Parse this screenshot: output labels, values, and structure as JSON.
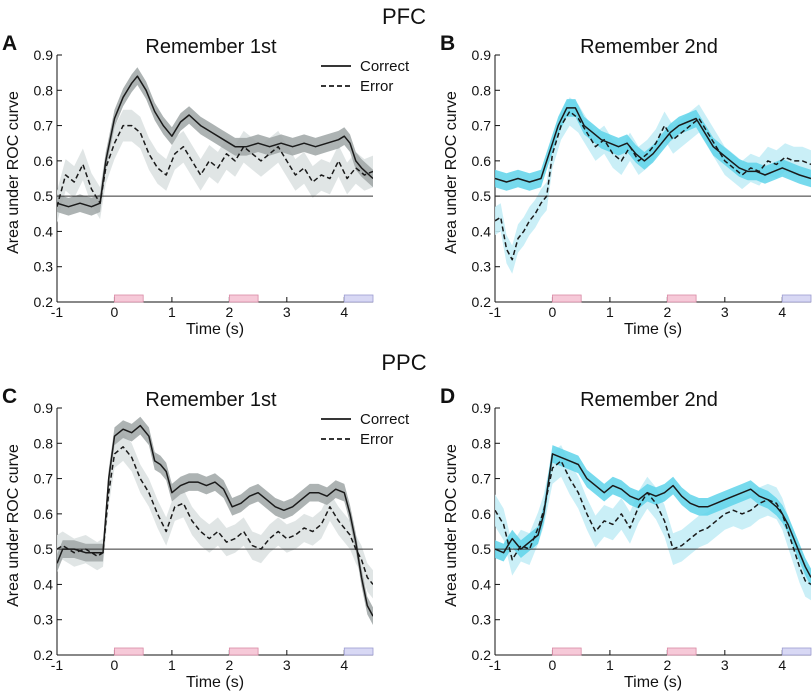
{
  "figure": {
    "sections": [
      {
        "key": "pfc",
        "title": "PFC"
      },
      {
        "key": "ppc",
        "title": "PPC"
      }
    ],
    "legend": {
      "correct": "Correct",
      "error": "Error"
    }
  },
  "colors": {
    "correct_band_gray": "#9fa6a6",
    "error_band_gray": "#dde2e2",
    "correct_band_cyan": "#5fd3ea",
    "error_band_cyan": "#c4edf6",
    "line": "#1a1a1a",
    "stim_pink": "#f6c9d8",
    "stim_pink_edge": "#d98aa5",
    "stim_lavender": "#d8d8f4",
    "stim_lavender_edge": "#9c9cd0"
  },
  "chart_data": [
    {
      "id": "A",
      "type": "line",
      "section": "PFC",
      "letter": "A",
      "title": "Remember 1st",
      "xlabel": "Time (s)",
      "ylabel": "Area under ROC curve",
      "xlim": [
        -1,
        4.5
      ],
      "ylim": [
        0.2,
        0.9
      ],
      "xticks": [
        "-1",
        "0",
        "1",
        "2",
        "3",
        "4"
      ],
      "yticks": [
        "0.2",
        "0.3",
        "0.4",
        "0.5",
        "0.6",
        "0.7",
        "0.8",
        "0.9"
      ],
      "reference_line": 0.5,
      "band_style": "gray",
      "show_legend": true,
      "stimuli": [
        [
          0,
          0.5,
          "pink"
        ],
        [
          2,
          2.5,
          "pink"
        ],
        [
          4,
          4.5,
          "lavender"
        ]
      ],
      "series": [
        {
          "name": "Correct",
          "style": "solid",
          "band": 0.025,
          "x": [
            -1,
            -0.8,
            -0.6,
            -0.4,
            -0.25,
            -0.15,
            0,
            0.15,
            0.3,
            0.4,
            0.55,
            0.7,
            0.85,
            1.0,
            1.15,
            1.3,
            1.5,
            1.7,
            1.9,
            2.1,
            2.3,
            2.5,
            2.7,
            2.9,
            3.1,
            3.3,
            3.5,
            3.7,
            3.9,
            4.0,
            4.1,
            4.2,
            4.3,
            4.5
          ],
          "y": [
            0.48,
            0.47,
            0.48,
            0.47,
            0.48,
            0.6,
            0.72,
            0.78,
            0.82,
            0.84,
            0.8,
            0.74,
            0.7,
            0.67,
            0.71,
            0.73,
            0.7,
            0.68,
            0.66,
            0.64,
            0.64,
            0.65,
            0.64,
            0.65,
            0.64,
            0.65,
            0.64,
            0.65,
            0.66,
            0.67,
            0.65,
            0.6,
            0.58,
            0.55
          ]
        },
        {
          "name": "Error",
          "style": "dashed",
          "band": 0.045,
          "x": [
            -1,
            -0.85,
            -0.7,
            -0.55,
            -0.4,
            -0.25,
            -0.15,
            0,
            0.15,
            0.3,
            0.45,
            0.6,
            0.75,
            0.9,
            1.05,
            1.2,
            1.35,
            1.5,
            1.65,
            1.8,
            1.95,
            2.1,
            2.25,
            2.4,
            2.55,
            2.7,
            2.85,
            3.0,
            3.15,
            3.3,
            3.45,
            3.6,
            3.75,
            3.9,
            4.05,
            4.2,
            4.35,
            4.5
          ],
          "y": [
            0.47,
            0.56,
            0.54,
            0.59,
            0.52,
            0.48,
            0.58,
            0.65,
            0.7,
            0.7,
            0.68,
            0.62,
            0.58,
            0.56,
            0.62,
            0.64,
            0.6,
            0.56,
            0.6,
            0.58,
            0.62,
            0.6,
            0.64,
            0.62,
            0.6,
            0.62,
            0.64,
            0.6,
            0.56,
            0.58,
            0.54,
            0.56,
            0.55,
            0.6,
            0.55,
            0.58,
            0.56,
            0.57
          ]
        }
      ]
    },
    {
      "id": "B",
      "type": "line",
      "section": "PFC",
      "letter": "B",
      "title": "Remember 2nd",
      "xlabel": "Time (s)",
      "ylabel": "Area under ROC curve",
      "xlim": [
        -1,
        4.5
      ],
      "ylim": [
        0.2,
        0.9
      ],
      "xticks": [
        "-1",
        "0",
        "1",
        "2",
        "3",
        "4"
      ],
      "yticks": [
        "0.2",
        "0.3",
        "0.4",
        "0.5",
        "0.6",
        "0.7",
        "0.8",
        "0.9"
      ],
      "reference_line": 0.5,
      "band_style": "cyan",
      "show_legend": false,
      "stimuli": [
        [
          0,
          0.5,
          "pink"
        ],
        [
          2,
          2.5,
          "pink"
        ],
        [
          4,
          4.5,
          "lavender"
        ]
      ],
      "series": [
        {
          "name": "Correct",
          "style": "solid",
          "band": 0.025,
          "x": [
            -1,
            -0.8,
            -0.6,
            -0.4,
            -0.2,
            -0.1,
            0,
            0.1,
            0.25,
            0.4,
            0.55,
            0.7,
            0.85,
            1.0,
            1.15,
            1.3,
            1.45,
            1.6,
            1.75,
            1.9,
            2.05,
            2.2,
            2.35,
            2.5,
            2.65,
            2.8,
            2.95,
            3.1,
            3.25,
            3.4,
            3.55,
            3.7,
            3.85,
            4.0,
            4.15,
            4.3,
            4.5
          ],
          "y": [
            0.55,
            0.54,
            0.55,
            0.54,
            0.55,
            0.6,
            0.65,
            0.7,
            0.75,
            0.75,
            0.7,
            0.68,
            0.66,
            0.65,
            0.64,
            0.65,
            0.62,
            0.6,
            0.62,
            0.65,
            0.68,
            0.7,
            0.71,
            0.72,
            0.68,
            0.64,
            0.62,
            0.6,
            0.58,
            0.57,
            0.57,
            0.56,
            0.57,
            0.58,
            0.57,
            0.56,
            0.55
          ]
        },
        {
          "name": "Error",
          "style": "dashed",
          "band": 0.04,
          "x": [
            -1,
            -0.9,
            -0.8,
            -0.7,
            -0.6,
            -0.5,
            -0.4,
            -0.3,
            -0.2,
            -0.1,
            0,
            0.15,
            0.3,
            0.45,
            0.6,
            0.75,
            0.9,
            1.05,
            1.2,
            1.35,
            1.5,
            1.65,
            1.8,
            1.95,
            2.1,
            2.25,
            2.4,
            2.55,
            2.7,
            2.85,
            3.0,
            3.15,
            3.3,
            3.45,
            3.6,
            3.75,
            3.9,
            4.05,
            4.2,
            4.35,
            4.5
          ],
          "y": [
            0.43,
            0.44,
            0.35,
            0.32,
            0.38,
            0.4,
            0.43,
            0.45,
            0.48,
            0.5,
            0.62,
            0.7,
            0.74,
            0.72,
            0.68,
            0.64,
            0.66,
            0.62,
            0.6,
            0.64,
            0.6,
            0.62,
            0.65,
            0.7,
            0.66,
            0.68,
            0.7,
            0.72,
            0.68,
            0.64,
            0.6,
            0.58,
            0.56,
            0.58,
            0.57,
            0.6,
            0.59,
            0.61,
            0.6,
            0.6,
            0.59
          ]
        }
      ]
    },
    {
      "id": "C",
      "type": "line",
      "section": "PPC",
      "letter": "C",
      "title": "Remember 1st",
      "xlabel": "Time (s)",
      "ylabel": "Area under ROC curve",
      "xlim": [
        -1,
        4.5
      ],
      "ylim": [
        0.2,
        0.9
      ],
      "xticks": [
        "-1",
        "0",
        "1",
        "2",
        "3",
        "4"
      ],
      "yticks": [
        "0.2",
        "0.3",
        "0.4",
        "0.5",
        "0.6",
        "0.7",
        "0.8",
        "0.9"
      ],
      "reference_line": 0.5,
      "band_style": "gray",
      "show_legend": true,
      "stimuli": [
        [
          0,
          0.5,
          "pink"
        ],
        [
          2,
          2.5,
          "pink"
        ],
        [
          4,
          4.5,
          "lavender"
        ]
      ],
      "series": [
        {
          "name": "Correct",
          "style": "solid",
          "band": 0.025,
          "x": [
            -1,
            -0.9,
            -0.7,
            -0.5,
            -0.3,
            -0.2,
            -0.1,
            0,
            0.15,
            0.3,
            0.45,
            0.6,
            0.7,
            0.8,
            0.9,
            1.0,
            1.15,
            1.3,
            1.45,
            1.6,
            1.75,
            1.9,
            2.05,
            2.2,
            2.35,
            2.5,
            2.65,
            2.8,
            2.95,
            3.1,
            3.25,
            3.4,
            3.55,
            3.7,
            3.85,
            4.0,
            4.1,
            4.2,
            4.3,
            4.4,
            4.5
          ],
          "y": [
            0.46,
            0.5,
            0.5,
            0.49,
            0.49,
            0.49,
            0.7,
            0.82,
            0.84,
            0.83,
            0.85,
            0.82,
            0.75,
            0.74,
            0.72,
            0.66,
            0.68,
            0.69,
            0.69,
            0.68,
            0.69,
            0.67,
            0.62,
            0.63,
            0.65,
            0.66,
            0.64,
            0.62,
            0.61,
            0.62,
            0.64,
            0.66,
            0.66,
            0.65,
            0.67,
            0.66,
            0.6,
            0.52,
            0.42,
            0.34,
            0.31
          ]
        },
        {
          "name": "Error",
          "style": "dashed",
          "band": 0.04,
          "x": [
            -1,
            -0.9,
            -0.7,
            -0.5,
            -0.3,
            -0.2,
            -0.1,
            0,
            0.15,
            0.3,
            0.45,
            0.6,
            0.75,
            0.9,
            1.05,
            1.2,
            1.35,
            1.5,
            1.65,
            1.8,
            1.95,
            2.1,
            2.25,
            2.4,
            2.55,
            2.7,
            2.85,
            3.0,
            3.15,
            3.3,
            3.45,
            3.6,
            3.75,
            3.9,
            4.0,
            4.1,
            4.2,
            4.3,
            4.4,
            4.5
          ],
          "y": [
            0.5,
            0.51,
            0.49,
            0.5,
            0.48,
            0.49,
            0.66,
            0.77,
            0.79,
            0.76,
            0.7,
            0.66,
            0.6,
            0.55,
            0.62,
            0.63,
            0.58,
            0.55,
            0.53,
            0.55,
            0.52,
            0.53,
            0.55,
            0.51,
            0.5,
            0.53,
            0.55,
            0.53,
            0.54,
            0.56,
            0.55,
            0.57,
            0.62,
            0.58,
            0.56,
            0.54,
            0.5,
            0.47,
            0.42,
            0.4
          ]
        }
      ]
    },
    {
      "id": "D",
      "type": "line",
      "section": "PPC",
      "letter": "D",
      "title": "Remember 2nd",
      "xlabel": "Time (s)",
      "ylabel": "Area under ROC curve",
      "xlim": [
        -1,
        4.5
      ],
      "ylim": [
        0.2,
        0.9
      ],
      "xticks": [
        "-1",
        "0",
        "1",
        "2",
        "3",
        "4"
      ],
      "yticks": [
        "0.2",
        "0.3",
        "0.4",
        "0.5",
        "0.6",
        "0.7",
        "0.8",
        "0.9"
      ],
      "reference_line": 0.5,
      "band_style": "cyan",
      "show_legend": false,
      "stimuli": [
        [
          0,
          0.5,
          "pink"
        ],
        [
          2,
          2.5,
          "pink"
        ],
        [
          4,
          4.5,
          "lavender"
        ]
      ],
      "series": [
        {
          "name": "Correct",
          "style": "solid",
          "band": 0.025,
          "x": [
            -1,
            -0.85,
            -0.7,
            -0.55,
            -0.4,
            -0.25,
            -0.15,
            0,
            0.15,
            0.3,
            0.45,
            0.6,
            0.75,
            0.9,
            1.05,
            1.2,
            1.35,
            1.5,
            1.65,
            1.8,
            1.95,
            2.1,
            2.25,
            2.4,
            2.55,
            2.7,
            2.85,
            3.0,
            3.15,
            3.3,
            3.45,
            3.6,
            3.75,
            3.9,
            4.0,
            4.1,
            4.2,
            4.3,
            4.4,
            4.5
          ],
          "y": [
            0.5,
            0.49,
            0.53,
            0.5,
            0.52,
            0.54,
            0.6,
            0.77,
            0.76,
            0.75,
            0.74,
            0.7,
            0.68,
            0.66,
            0.68,
            0.67,
            0.65,
            0.64,
            0.66,
            0.65,
            0.66,
            0.68,
            0.65,
            0.63,
            0.62,
            0.62,
            0.63,
            0.64,
            0.65,
            0.66,
            0.67,
            0.65,
            0.64,
            0.62,
            0.6,
            0.57,
            0.53,
            0.49,
            0.45,
            0.42
          ]
        },
        {
          "name": "Error",
          "style": "dashed",
          "band": 0.045,
          "x": [
            -1,
            -0.85,
            -0.7,
            -0.55,
            -0.4,
            -0.25,
            -0.15,
            0,
            0.15,
            0.3,
            0.45,
            0.6,
            0.75,
            0.9,
            1.05,
            1.2,
            1.35,
            1.5,
            1.65,
            1.8,
            1.95,
            2.1,
            2.25,
            2.4,
            2.55,
            2.7,
            2.85,
            3.0,
            3.15,
            3.3,
            3.45,
            3.6,
            3.75,
            3.9,
            4.0,
            4.1,
            4.2,
            4.3,
            4.4,
            4.5
          ],
          "y": [
            0.61,
            0.57,
            0.47,
            0.51,
            0.5,
            0.56,
            0.61,
            0.73,
            0.75,
            0.7,
            0.66,
            0.6,
            0.55,
            0.58,
            0.57,
            0.6,
            0.56,
            0.62,
            0.66,
            0.63,
            0.58,
            0.5,
            0.51,
            0.53,
            0.55,
            0.56,
            0.58,
            0.6,
            0.61,
            0.6,
            0.61,
            0.63,
            0.64,
            0.63,
            0.6,
            0.55,
            0.5,
            0.45,
            0.41,
            0.4
          ]
        }
      ]
    }
  ]
}
